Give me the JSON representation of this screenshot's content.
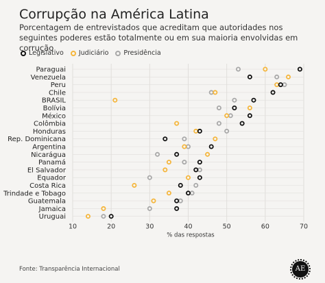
{
  "title": "Corrupção na América Latina",
  "subtitle": "Porcentagem de entrevistados que acreditam que autoridades nos seguintes poderes estão totalmente ou em sua maioria envolvidas em corrução",
  "source": "Fonte: Transparência Internacional",
  "logo_text": "AE",
  "colors": {
    "legislativo": "#111111",
    "judiciario": "#f5b63c",
    "presidencia": "#a8a8a8",
    "gridline": "#e0dedb",
    "background": "#f5f4f2"
  },
  "chart_data": {
    "type": "scatter",
    "xlabel": "% das respostas",
    "xlim": [
      10,
      70
    ],
    "xticks": [
      10,
      20,
      30,
      40,
      50,
      60,
      70
    ],
    "legend_position": "top-left",
    "grid": true,
    "categories": [
      "Paraguai",
      "Venezuela",
      "Peru",
      "Chile",
      "BRASIL",
      "Bolívia",
      "México",
      "Colômbia",
      "Honduras",
      "Rep. Dominicana",
      "Argentina",
      "Nicarágua",
      "Panamá",
      "El Salvador",
      "Equador",
      "Costa Rica",
      "Trindade e Tobago",
      "Guatemala",
      "Jamaica",
      "Uruguai"
    ],
    "series": [
      {
        "name": "Legislativo",
        "values": [
          69,
          56,
          64,
          62,
          57,
          52,
          56,
          54,
          43,
          34,
          46,
          37,
          43,
          42,
          43,
          38,
          40,
          37,
          37,
          20
        ]
      },
      {
        "name": "Judiciário",
        "values": [
          60,
          66,
          63,
          47,
          21,
          56,
          50,
          37,
          42,
          47,
          39,
          45,
          35,
          34,
          40,
          26,
          35,
          31,
          18,
          14
        ]
      },
      {
        "name": "Presidência",
        "values": [
          53,
          63,
          65,
          46,
          52,
          48,
          51,
          48,
          50,
          39,
          40,
          32,
          39,
          43,
          30,
          42,
          41,
          38,
          30,
          18
        ]
      }
    ]
  }
}
